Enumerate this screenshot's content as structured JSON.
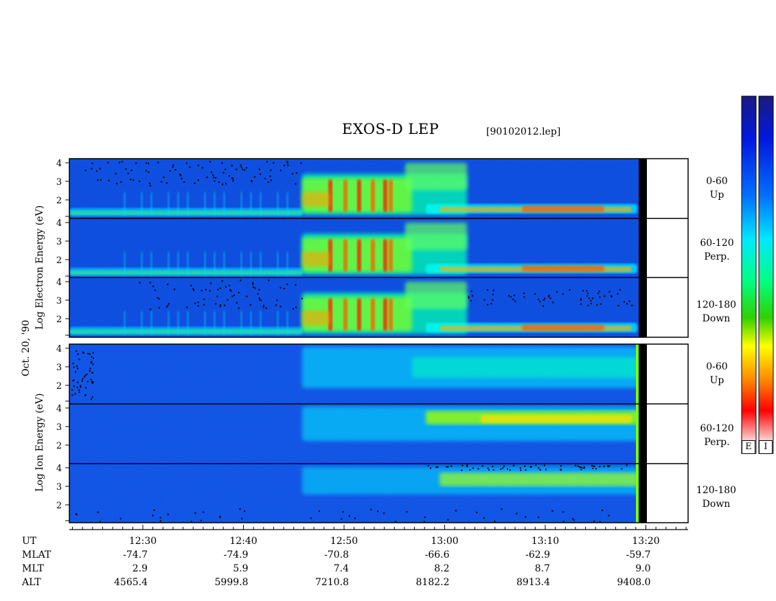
{
  "title": "EXOS-D LEP",
  "filename": "[90102012.lep]",
  "date_label": "Oct. 20, '90",
  "electron_ylabel": "Log  Electron  Energy (eV)",
  "ion_ylabel": "Log  Ion  Energy (eV)",
  "panel_labels": [
    {
      "angle": "0-60",
      "dir": "Up"
    },
    {
      "angle": "60-120",
      "dir": "Perp."
    },
    {
      "angle": "120-180",
      "dir": "Down"
    },
    {
      "angle": "0-60",
      "dir": "Up"
    },
    {
      "angle": "60-120",
      "dir": "Perp."
    },
    {
      "angle": "120-180",
      "dir": "Down"
    }
  ],
  "colorbar_labels": [
    "E",
    "I"
  ],
  "ephemeris": {
    "row_labels": [
      "UT",
      "MLAT",
      "MLT",
      "ALT"
    ],
    "columns": [
      {
        "UT": "12:30",
        "MLAT": "-74.7",
        "MLT": "2.9",
        "ALT": "4565.4"
      },
      {
        "UT": "12:40",
        "MLAT": "-74.9",
        "MLT": "5.9",
        "ALT": "5999.8"
      },
      {
        "UT": "12:50",
        "MLAT": "-70.8",
        "MLT": "7.4",
        "ALT": "7210.8"
      },
      {
        "UT": "13:00",
        "MLAT": "-66.6",
        "MLT": "8.2",
        "ALT": "8182.2"
      },
      {
        "UT": "13:10",
        "MLAT": "-62.9",
        "MLT": "8.7",
        "ALT": "8913.4"
      },
      {
        "UT": "13:20",
        "MLAT": "-59.7",
        "MLT": "9.0",
        "ALT": "9408.0"
      }
    ]
  },
  "chart_data": {
    "type": "heatmap",
    "title": "EXOS-D LEP",
    "xlabel": "UT",
    "x_ticks": [
      "12:30",
      "12:40",
      "12:50",
      "13:00",
      "13:10",
      "13:20"
    ],
    "ylabel_electron": "Log Electron Energy (eV)",
    "ylabel_ion": "Log Ion Energy (eV)",
    "y_ticks_electron": [
      "4",
      "3",
      "2"
    ],
    "y_ticks_ion": [
      "4",
      "3",
      "2",
      "1"
    ],
    "colorscale": [
      "#1a1a80",
      "#0000ff",
      "#00aaff",
      "#00ffff",
      "#00ff00",
      "#ffff00",
      "#ff8000",
      "#ff0000",
      "#ffffff"
    ],
    "panels": [
      {
        "species": "Electron",
        "pitch_angle": "0-60",
        "direction": "Up"
      },
      {
        "species": "Electron",
        "pitch_angle": "60-120",
        "direction": "Perp."
      },
      {
        "species": "Electron",
        "pitch_angle": "120-180",
        "direction": "Down"
      },
      {
        "species": "Ion",
        "pitch_angle": "0-60",
        "direction": "Up"
      },
      {
        "species": "Ion",
        "pitch_angle": "60-120",
        "direction": "Perp."
      },
      {
        "species": "Ion",
        "pitch_angle": "120-180",
        "direction": "Down"
      }
    ]
  }
}
